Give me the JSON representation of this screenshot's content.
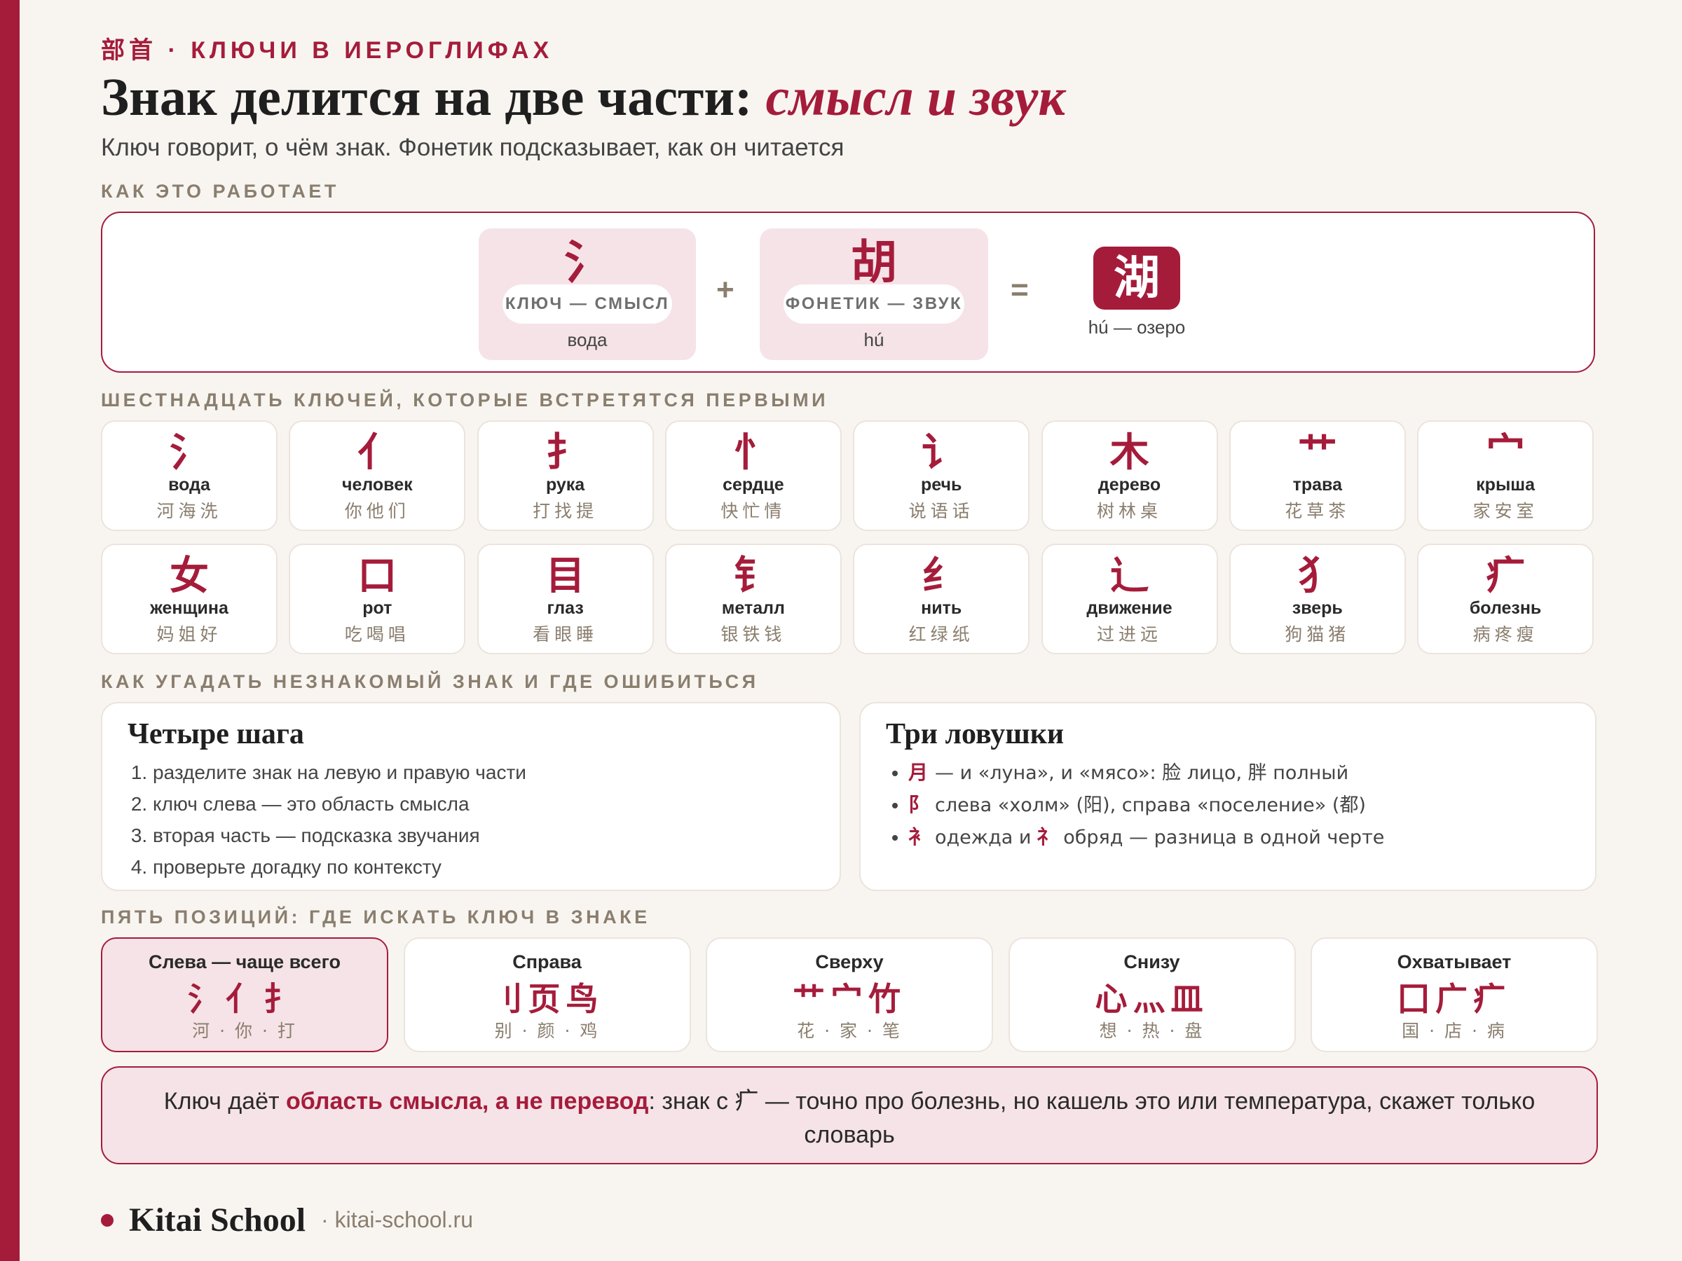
{
  "header": {
    "kicker": "部首 · КЛЮЧИ В ИЕРОГЛИФАХ",
    "title_main": "Знак делится на две части: ",
    "title_accent": "смысл и звук",
    "subtitle": "Ключ говорит, о чём знак. Фонетик подсказывает, как он читается"
  },
  "sections": {
    "how": "КАК ЭТО РАБОТАЕТ",
    "radicals": "ШЕСТНАДЦАТЬ КЛЮЧЕЙ, КОТОРЫЕ ВСТРЕТЯТСЯ ПЕРВЫМИ",
    "guess": "КАК УГАДАТЬ НЕЗНАКОМЫЙ ЗНАК И ГДЕ ОШИБИТЬСЯ",
    "positions": "ПЯТЬ ПОЗИЦИЙ: ГДЕ ИСКАТЬ КЛЮЧ В ЗНАКЕ"
  },
  "formula": {
    "key": {
      "glyph": "氵",
      "label": "КЛЮЧ — СМЫСЛ",
      "meaning": "вода"
    },
    "phonetic": {
      "glyph": "胡",
      "label": "ФОНЕТИК — ЗВУК",
      "meaning": "hú"
    },
    "plus": "+",
    "equals": "=",
    "result": {
      "glyph": "湖",
      "meaning": "hú — озеро"
    }
  },
  "radicals": [
    {
      "glyph": "氵",
      "name": "вода",
      "examples": "河海洗"
    },
    {
      "glyph": "亻",
      "name": "человек",
      "examples": "你他们"
    },
    {
      "glyph": "扌",
      "name": "рука",
      "examples": "打找提"
    },
    {
      "glyph": "忄",
      "name": "сердце",
      "examples": "快忙情"
    },
    {
      "glyph": "讠",
      "name": "речь",
      "examples": "说语话"
    },
    {
      "glyph": "木",
      "name": "дерево",
      "examples": "树林桌"
    },
    {
      "glyph": "艹",
      "name": "трава",
      "examples": "花草茶"
    },
    {
      "glyph": "宀",
      "name": "крыша",
      "examples": "家安室"
    },
    {
      "glyph": "女",
      "name": "женщина",
      "examples": "妈姐好"
    },
    {
      "glyph": "口",
      "name": "рот",
      "examples": "吃喝唱"
    },
    {
      "glyph": "目",
      "name": "глаз",
      "examples": "看眼睡"
    },
    {
      "glyph": "钅",
      "name": "металл",
      "examples": "银铁钱"
    },
    {
      "glyph": "纟",
      "name": "нить",
      "examples": "红绿纸"
    },
    {
      "glyph": "辶",
      "name": "движение",
      "examples": "过进远"
    },
    {
      "glyph": "犭",
      "name": "зверь",
      "examples": "狗猫猪"
    },
    {
      "glyph": "疒",
      "name": "болезнь",
      "examples": "病疼瘦"
    }
  ],
  "steps": {
    "title": "Четыре шага",
    "items": [
      "разделите знак на левую и правую части",
      "ключ слева — это область смысла",
      "вторая часть — подсказка звучания",
      "проверьте догадку по контексту"
    ]
  },
  "traps": {
    "title": "Три ловушки",
    "items": [
      {
        "mark": "月",
        "text": "— и «луна», и «мясо»: 脸 лицо, 胖 полный"
      },
      {
        "mark": "阝",
        "text": "слева «холм» (阳), справа «поселение» (都)"
      },
      {
        "mark": "衤",
        "text": "одежда и",
        "mark2": "礻",
        "text2": "обряд — разница в одной черте"
      }
    ]
  },
  "positions": [
    {
      "title": "Слева — чаще всего",
      "glyphs": "氵亻扌",
      "examples": "河 · 你 · 打",
      "active": true
    },
    {
      "title": "Справа",
      "glyphs": "刂页鸟",
      "examples": "别 · 颜 · 鸡"
    },
    {
      "title": "Сверху",
      "glyphs": "艹宀竹",
      "examples": "花 · 家 · 笔"
    },
    {
      "title": "Снизу",
      "glyphs": "心灬皿",
      "examples": "想 · 热 · 盘"
    },
    {
      "title": "Охватывает",
      "glyphs": "囗广疒",
      "examples": "国 · 店 · 病"
    }
  ],
  "note": {
    "prefix": "Ключ даёт ",
    "emphasis": "область смысла, а не перевод",
    "suffix": ": знак с 疒 — точно про болезнь, но кашель это или температура, скажет только словарь"
  },
  "footer": {
    "brand": "Kitai School",
    "site": "· kitai-school.ru"
  },
  "colors": {
    "accent": "#a51c3b",
    "pink_bg": "#f5e3e7",
    "muted": "#8a7e6e",
    "page_bg": "#f8f5f1"
  }
}
